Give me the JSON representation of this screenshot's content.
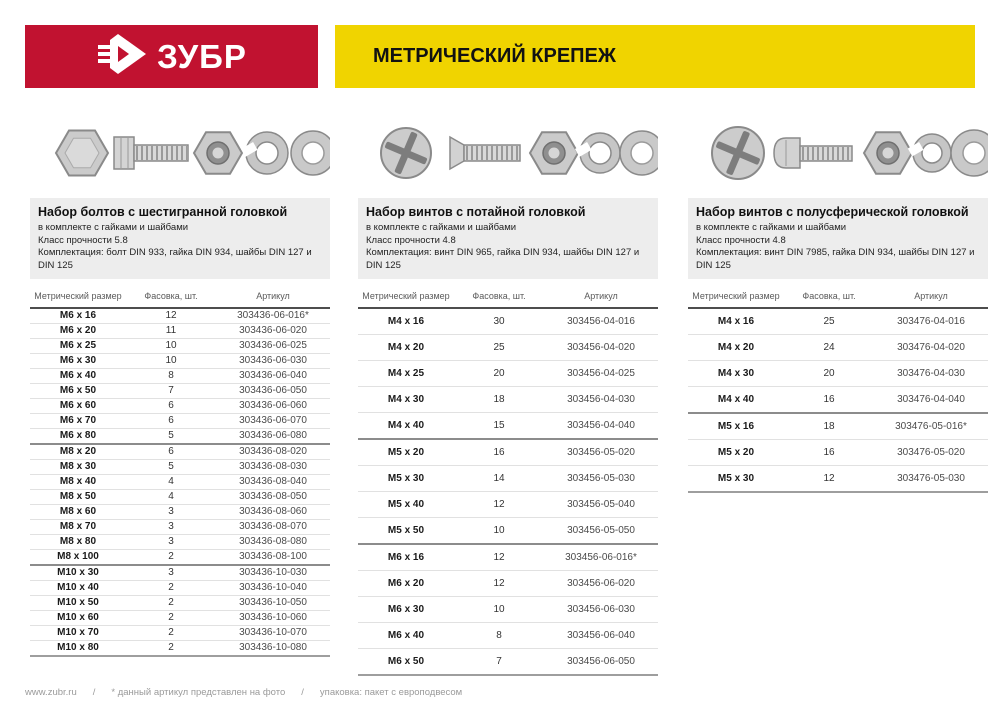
{
  "header": {
    "brand": "ЗУБР",
    "title": "МЕТРИЧЕСКИЙ КРЕПЕЖ",
    "brand_bg": "#c11230",
    "title_bg": "#f0d400"
  },
  "table_headers": {
    "size": "Метрический размер",
    "pack": "Фасовка, шт.",
    "sku": "Артикул"
  },
  "sections": [
    {
      "title": "Набор болтов с шестигранной головкой",
      "subtitle": "в комплекте с гайками и шайбами",
      "strength": "Класс прочности 5.8",
      "components": "Комплектация: болт DIN 933, гайка DIN 934, шайбы DIN 127 и DIN 125",
      "photo": "hex-bolt-set",
      "groups": [
        {
          "rows": [
            {
              "size": "M6 x 16",
              "qty": "12",
              "sku": "303436-06-016*"
            },
            {
              "size": "M6 x 20",
              "qty": "11",
              "sku": "303436-06-020"
            },
            {
              "size": "M6 x 25",
              "qty": "10",
              "sku": "303436-06-025"
            },
            {
              "size": "M6 x 30",
              "qty": "10",
              "sku": "303436-06-030"
            },
            {
              "size": "M6 x 40",
              "qty": "8",
              "sku": "303436-06-040"
            },
            {
              "size": "M6 x 50",
              "qty": "7",
              "sku": "303436-06-050"
            },
            {
              "size": "M6 x 60",
              "qty": "6",
              "sku": "303436-06-060"
            },
            {
              "size": "M6 x 70",
              "qty": "6",
              "sku": "303436-06-070"
            },
            {
              "size": "M6 x 80",
              "qty": "5",
              "sku": "303436-06-080"
            }
          ]
        },
        {
          "rows": [
            {
              "size": "M8 x 20",
              "qty": "6",
              "sku": "303436-08-020"
            },
            {
              "size": "M8 x 30",
              "qty": "5",
              "sku": "303436-08-030"
            },
            {
              "size": "M8 x 40",
              "qty": "4",
              "sku": "303436-08-040"
            },
            {
              "size": "M8 x 50",
              "qty": "4",
              "sku": "303436-08-050"
            },
            {
              "size": "M8 x 60",
              "qty": "3",
              "sku": "303436-08-060"
            },
            {
              "size": "M8 x 70",
              "qty": "3",
              "sku": "303436-08-070"
            },
            {
              "size": "M8 x 80",
              "qty": "3",
              "sku": "303436-08-080"
            },
            {
              "size": "M8 x 100",
              "qty": "2",
              "sku": "303436-08-100"
            }
          ]
        },
        {
          "rows": [
            {
              "size": "M10 x 30",
              "qty": "3",
              "sku": "303436-10-030"
            },
            {
              "size": "M10 x 40",
              "qty": "2",
              "sku": "303436-10-040"
            },
            {
              "size": "M10 x 50",
              "qty": "2",
              "sku": "303436-10-050"
            },
            {
              "size": "M10 x 60",
              "qty": "2",
              "sku": "303436-10-060"
            },
            {
              "size": "M10 x 70",
              "qty": "2",
              "sku": "303436-10-070"
            },
            {
              "size": "M10 x 80",
              "qty": "2",
              "sku": "303436-10-080"
            }
          ]
        }
      ]
    },
    {
      "title": "Набор винтов с потайной головкой",
      "subtitle": "в комплекте с гайками и шайбами",
      "strength": "Класс прочности 4.8",
      "components": "Комплектация: винт DIN 965, гайка DIN 934, шайбы DIN 127 и DIN 125",
      "photo": "countersunk-screw-set",
      "groups": [
        {
          "rows": [
            {
              "size": "M4 x 16",
              "qty": "30",
              "sku": "303456-04-016"
            },
            {
              "size": "M4 x 20",
              "qty": "25",
              "sku": "303456-04-020"
            },
            {
              "size": "M4 x 25",
              "qty": "20",
              "sku": "303456-04-025"
            },
            {
              "size": "M4 x 30",
              "qty": "18",
              "sku": "303456-04-030"
            },
            {
              "size": "M4 x 40",
              "qty": "15",
              "sku": "303456-04-040"
            }
          ]
        },
        {
          "rows": [
            {
              "size": "M5 x 20",
              "qty": "16",
              "sku": "303456-05-020"
            },
            {
              "size": "M5 x 30",
              "qty": "14",
              "sku": "303456-05-030"
            },
            {
              "size": "M5 x 40",
              "qty": "12",
              "sku": "303456-05-040"
            },
            {
              "size": "M5 x 50",
              "qty": "10",
              "sku": "303456-05-050"
            }
          ]
        },
        {
          "rows": [
            {
              "size": "M6 x 16",
              "qty": "12",
              "sku": "303456-06-016*"
            },
            {
              "size": "M6 x 20",
              "qty": "12",
              "sku": "303456-06-020"
            },
            {
              "size": "M6 x 30",
              "qty": "10",
              "sku": "303456-06-030"
            },
            {
              "size": "M6 x 40",
              "qty": "8",
              "sku": "303456-06-040"
            },
            {
              "size": "M6 x 50",
              "qty": "7",
              "sku": "303456-06-050"
            }
          ]
        }
      ]
    },
    {
      "title": "Набор винтов с полусферической головкой",
      "subtitle": "в комплекте с гайками и шайбами",
      "strength": "Класс прочности 4.8",
      "components": "Комплектация: винт DIN 7985, гайка DIN 934, шайбы DIN 127 и DIN 125",
      "photo": "pan-head-screw-set",
      "groups": [
        {
          "rows": [
            {
              "size": "M4 x 16",
              "qty": "25",
              "sku": "303476-04-016"
            },
            {
              "size": "M4 x 20",
              "qty": "24",
              "sku": "303476-04-020"
            },
            {
              "size": "M4 x 30",
              "qty": "20",
              "sku": "303476-04-030"
            },
            {
              "size": "M4 x 40",
              "qty": "16",
              "sku": "303476-04-040"
            }
          ]
        },
        {
          "rows": [
            {
              "size": "M5 x 16",
              "qty": "18",
              "sku": "303476-05-016*"
            },
            {
              "size": "M5 x 20",
              "qty": "16",
              "sku": "303476-05-020"
            },
            {
              "size": "M5 x 30",
              "qty": "12",
              "sku": "303476-05-030"
            }
          ]
        }
      ]
    }
  ],
  "footer": {
    "site": "www.zubr.ru",
    "sep": "/",
    "note_asterisk": "* данный артикул представлен на фото",
    "note_pack": "упаковка: пакет с европодвесом"
  }
}
